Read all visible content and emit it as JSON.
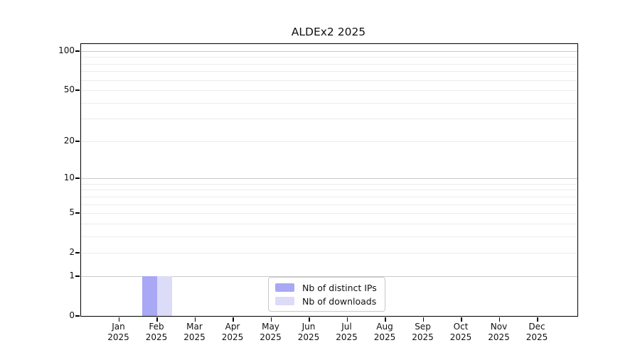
{
  "chart_data": {
    "type": "bar",
    "title": "ALDEx2 2025",
    "year_label": "2025",
    "categories": [
      "Jan",
      "Feb",
      "Mar",
      "Apr",
      "May",
      "Jun",
      "Jul",
      "Aug",
      "Sep",
      "Oct",
      "Nov",
      "Dec"
    ],
    "series": [
      {
        "name": "Nb of distinct IPs",
        "color": "#a8a8f4",
        "values": [
          0,
          1,
          0,
          0,
          0,
          0,
          0,
          0,
          0,
          0,
          0,
          0
        ]
      },
      {
        "name": "Nb of downloads",
        "color": "#dcdcf8",
        "values": [
          0,
          1,
          0,
          0,
          0,
          0,
          0,
          0,
          0,
          0,
          0,
          0
        ]
      }
    ],
    "yticks": [
      0,
      1,
      2,
      5,
      10,
      20,
      50,
      100
    ],
    "ylim": [
      0,
      113
    ],
    "yscale": "log1p",
    "grid": true,
    "legend_position": "bottom-center"
  },
  "colors": {
    "grid_major": "#c9c9c9",
    "grid_minor": "#ececec",
    "axis": "#000000",
    "background": "#ffffff"
  }
}
